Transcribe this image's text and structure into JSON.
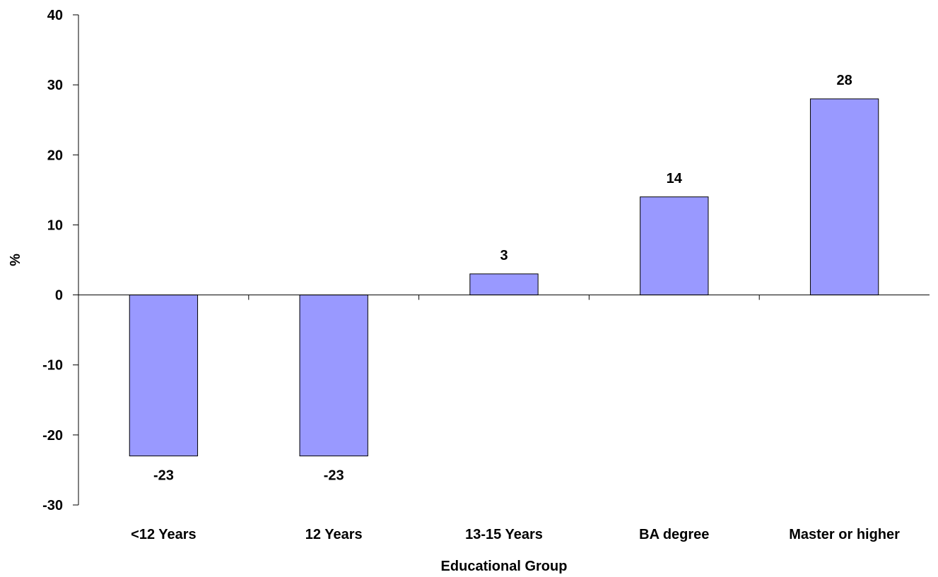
{
  "chart_data": {
    "type": "bar",
    "title": "",
    "xlabel": "Educational Group",
    "ylabel": "%",
    "categories": [
      "<12 Years",
      "12 Years",
      "13-15 Years",
      "BA degree",
      "Master or higher"
    ],
    "values": [
      -23,
      -23,
      3,
      14,
      28
    ],
    "data_labels": [
      "-23",
      "-23",
      "3",
      "14",
      "28"
    ],
    "ylim": [
      -30,
      40
    ],
    "yticks": [
      -30,
      -20,
      -10,
      0,
      10,
      20,
      30,
      40
    ],
    "ytick_labels": [
      "-30",
      "-20",
      "-10",
      "0",
      "10",
      "20",
      "30",
      "40"
    ],
    "grid": false,
    "legend": "none",
    "bar_color": "#9999ff",
    "bar_edge_color": "#000000"
  }
}
